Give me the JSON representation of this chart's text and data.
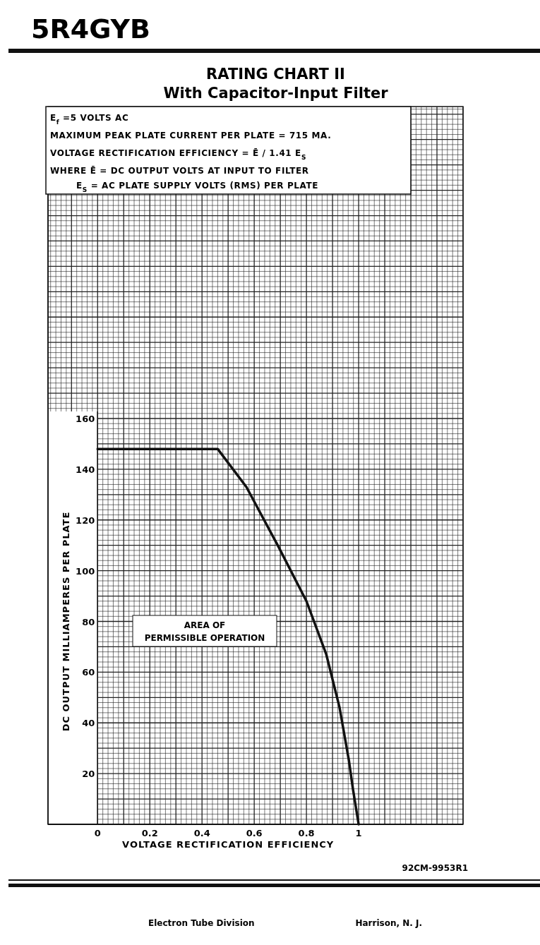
{
  "chart_data": {
    "type": "line",
    "title": "RATING CHART II",
    "subtitle": "With Capacitor-Input Filter",
    "xlabel": "VOLTAGE RECTIFICATION EFFICIENCY",
    "ylabel": "DC OUTPUT MILLIAMPERES PER PLATE",
    "series": [
      {
        "color": "#111111",
        "x": [
          0,
          0.46,
          0.57,
          0.69,
          0.8,
          0.876,
          0.927,
          0.963,
          0.978,
          1.0
        ],
        "values": [
          148,
          148,
          133,
          110,
          88,
          67,
          46,
          25,
          14,
          0
        ]
      }
    ],
    "xlim": [
      -0.19,
      1.4
    ],
    "ylim": [
      0,
      283
    ],
    "xticks": [
      0,
      0.2,
      0.4,
      0.6,
      0.8,
      1
    ],
    "yticks": [
      20,
      40,
      60,
      80,
      100,
      120,
      140,
      160
    ],
    "grid": true,
    "marker": "none",
    "line_style": "solid",
    "annotations": [
      "5R4GYB",
      "E$_{f}$=5 VOLTS AC",
      "MAXIMUM PEAK PLATE CURRENT PER PLATE = 715 MA.",
      "VOLTAGE RECTIFICATION EFFICIENCY = Ē / 1.41 E$_{S}$",
      "WHERE Ē = DC OUTPUT VOLTS AT INPUT TO FILTER",
      "E$_{S}$ = AC PLATE SUPPLY VOLTS (RMS) PER PLATE",
      "AREA OF PERMISSIBLE OPERATION",
      "92CM-9953R1",
      "Electron Tube Division",
      "Harrison, N. J."
    ]
  }
}
